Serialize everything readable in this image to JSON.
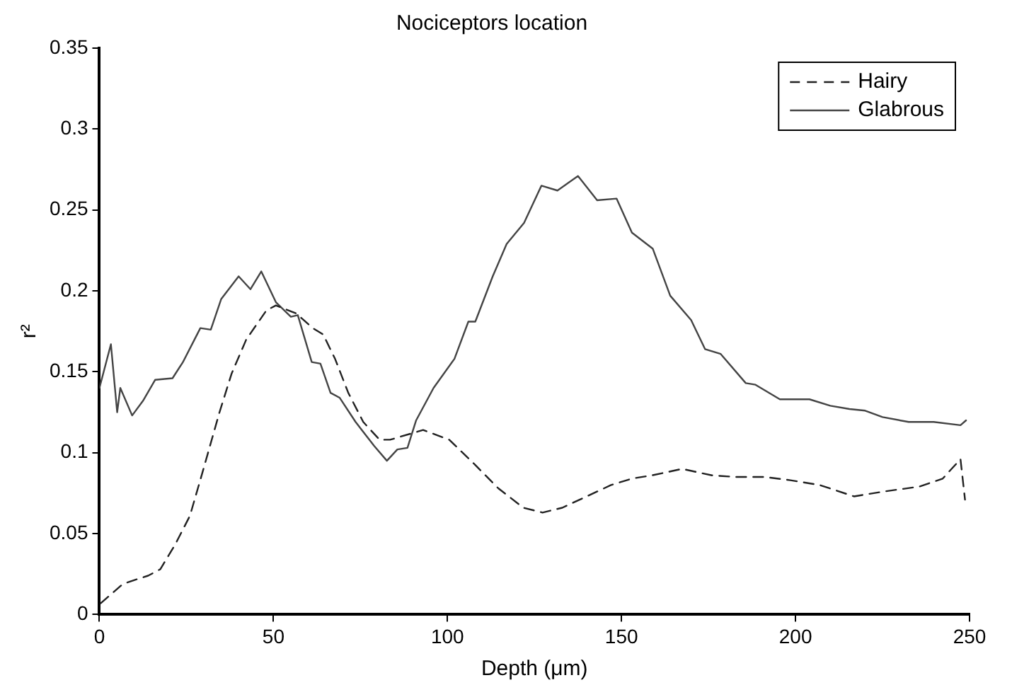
{
  "chart_data": {
    "type": "line",
    "title": "Nociceptors location",
    "xlabel": "Depth (μm)",
    "ylabel": "r²",
    "xlim": [
      0,
      250
    ],
    "xticks": [
      0,
      50,
      100,
      150,
      200,
      250
    ],
    "ylim": [
      0,
      0.35
    ],
    "yticks": [
      0,
      0.05,
      0.1,
      0.15,
      0.2,
      0.25,
      0.3,
      0.35
    ],
    "grid": false,
    "legend": "top right",
    "marker": "none",
    "series": [
      {
        "name": "Hairy",
        "color": "#222222",
        "line_style": "dashed",
        "x": [
          0.4,
          6.8,
          14,
          17.5,
          21.7,
          26,
          29.5,
          34.5,
          38,
          42.2,
          48,
          50.7,
          56.6,
          61.3,
          64.3,
          67.7,
          71.5,
          75.8,
          80.5,
          83.5,
          93,
          100.5,
          107.7,
          114.6,
          121.8,
          127.3,
          133,
          140,
          147,
          153,
          158.8,
          167.4,
          176,
          182.7,
          191,
          198.5,
          207,
          216.8,
          225.3,
          235.5,
          242.3,
          247.4,
          248.7
        ],
        "values": [
          0.007,
          0.019,
          0.024,
          0.028,
          0.043,
          0.061,
          0.087,
          0.125,
          0.149,
          0.17,
          0.188,
          0.191,
          0.186,
          0.177,
          0.173,
          0.158,
          0.137,
          0.119,
          0.108,
          0.108,
          0.114,
          0.108,
          0.093,
          0.078,
          0.066,
          0.063,
          0.066,
          0.073,
          0.08,
          0.084,
          0.086,
          0.09,
          0.086,
          0.085,
          0.085,
          0.083,
          0.08,
          0.073,
          0.076,
          0.079,
          0.084,
          0.096,
          0.071
        ]
      },
      {
        "name": "Glabrous",
        "color": "#444444",
        "line_style": "solid",
        "x": [
          0,
          3.3,
          5.1,
          6,
          9.4,
          12.5,
          16,
          21,
          24,
          29,
          32,
          35,
          40,
          43.4,
          46.5,
          50.7,
          55,
          57,
          61,
          63.5,
          66.4,
          69,
          73.6,
          79,
          82.6,
          85.6,
          88.5,
          91,
          96,
          102,
          106,
          108,
          113,
          117,
          122,
          127,
          131.6,
          137.5,
          143,
          148.6,
          153,
          159,
          164,
          170,
          174,
          178.5,
          185.7,
          188.5,
          195.5,
          204,
          210,
          215.5,
          220,
          225,
          232.5,
          239.7,
          247.4,
          249
        ],
        "values": [
          0.14,
          0.167,
          0.125,
          0.14,
          0.123,
          0.132,
          0.145,
          0.146,
          0.156,
          0.177,
          0.176,
          0.195,
          0.209,
          0.201,
          0.212,
          0.193,
          0.184,
          0.185,
          0.156,
          0.155,
          0.137,
          0.134,
          0.119,
          0.104,
          0.095,
          0.102,
          0.103,
          0.12,
          0.14,
          0.158,
          0.181,
          0.181,
          0.209,
          0.229,
          0.242,
          0.265,
          0.262,
          0.271,
          0.256,
          0.257,
          0.236,
          0.226,
          0.197,
          0.182,
          0.164,
          0.161,
          0.143,
          0.142,
          0.133,
          0.133,
          0.129,
          0.127,
          0.126,
          0.122,
          0.119,
          0.119,
          0.117,
          0.12
        ]
      }
    ]
  }
}
